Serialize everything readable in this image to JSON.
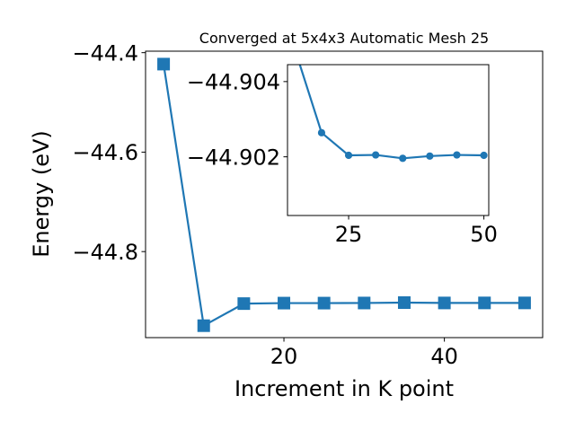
{
  "chart_data": [
    {
      "type": "line",
      "title": "Converged at 5x4x3 Automatic Mesh 25",
      "xlabel": "Increment in K point",
      "ylabel": "Energy (eV)",
      "xlim": [
        2.75,
        52.25
      ],
      "ylim": [
        -44.973,
        -44.397
      ],
      "xticks": [
        20,
        40
      ],
      "xtick_labels": [
        "20",
        "40"
      ],
      "yticks": [
        -44.4,
        -44.6,
        -44.8
      ],
      "ytick_labels": [
        "−44.4",
        "−44.6",
        "−44.8"
      ],
      "grid": false,
      "legend": "none",
      "marker": "square",
      "color": "#1f77b4",
      "series": [
        {
          "x": [
            5,
            10,
            15,
            20,
            25,
            30,
            35,
            40,
            45,
            50
          ],
          "values": [
            -44.423,
            -44.949,
            -44.9046,
            -44.9036,
            -44.9036,
            -44.9034,
            -44.9026,
            -44.9033,
            -44.9032,
            -44.9032
          ]
        }
      ]
    },
    {
      "type": "line",
      "inset": true,
      "title": "",
      "xlabel": "",
      "ylabel": "",
      "xlim": [
        13.7,
        50.9
      ],
      "ylim": [
        -44.90044,
        -44.90445
      ],
      "yaxis_inverted": true,
      "xticks": [
        25,
        50
      ],
      "xtick_labels": [
        "25",
        "50"
      ],
      "yticks": [
        -44.904,
        -44.902
      ],
      "ytick_labels": [
        "−44.904",
        "−44.902"
      ],
      "grid": false,
      "legend": "none",
      "marker": "circle",
      "color": "#1f77b4",
      "series": [
        {
          "x": [
            15,
            20,
            25,
            30,
            35,
            40,
            45,
            50
          ],
          "values": [
            -44.90489,
            -44.90264,
            -44.90204,
            -44.90205,
            -44.90196,
            -44.90202,
            -44.90205,
            -44.90204
          ]
        }
      ]
    }
  ]
}
